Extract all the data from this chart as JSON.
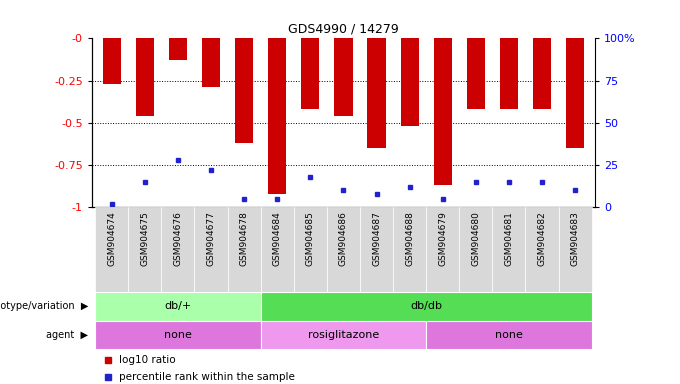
{
  "title": "GDS4990 / 14279",
  "samples": [
    "GSM904674",
    "GSM904675",
    "GSM904676",
    "GSM904677",
    "GSM904678",
    "GSM904684",
    "GSM904685",
    "GSM904686",
    "GSM904687",
    "GSM904688",
    "GSM904679",
    "GSM904680",
    "GSM904681",
    "GSM904682",
    "GSM904683"
  ],
  "log10_ratio": [
    -0.27,
    -0.46,
    -0.13,
    -0.29,
    -0.62,
    -0.92,
    -0.42,
    -0.46,
    -0.65,
    -0.52,
    -0.87,
    -0.42,
    -0.42,
    -0.42,
    -0.65
  ],
  "percentile_rank": [
    2,
    15,
    28,
    22,
    5,
    5,
    18,
    10,
    8,
    12,
    5,
    15,
    15,
    15,
    10
  ],
  "ylim_left": [
    -1,
    0
  ],
  "ylim_right": [
    0,
    100
  ],
  "yticks_left": [
    -1,
    -0.75,
    -0.5,
    -0.25,
    0
  ],
  "ytick_labels_left": [
    "-1",
    "-0.75",
    "-0.5",
    "-0.25",
    "-0"
  ],
  "yticks_right": [
    0,
    25,
    50,
    75,
    100
  ],
  "ytick_labels_right": [
    "0",
    "25",
    "50",
    "75",
    "100%"
  ],
  "bar_color": "#cc0000",
  "percentile_color": "#2222cc",
  "bg_color": "#ffffff",
  "genotype_groups": [
    {
      "text": "db/+",
      "start": 0,
      "end": 4,
      "color": "#aaffaa"
    },
    {
      "text": "db/db",
      "start": 5,
      "end": 14,
      "color": "#55dd55"
    }
  ],
  "agent_groups": [
    {
      "text": "none",
      "start": 0,
      "end": 4,
      "color": "#dd77dd"
    },
    {
      "text": "rosiglitazone",
      "start": 5,
      "end": 9,
      "color": "#ee99ee"
    },
    {
      "text": "none",
      "start": 10,
      "end": 14,
      "color": "#dd77dd"
    }
  ],
  "genotype_label": "genotype/variation",
  "agent_label": "agent",
  "legend_items": [
    {
      "label": "log10 ratio",
      "color": "#cc0000"
    },
    {
      "label": "percentile rank within the sample",
      "color": "#2222cc"
    }
  ]
}
